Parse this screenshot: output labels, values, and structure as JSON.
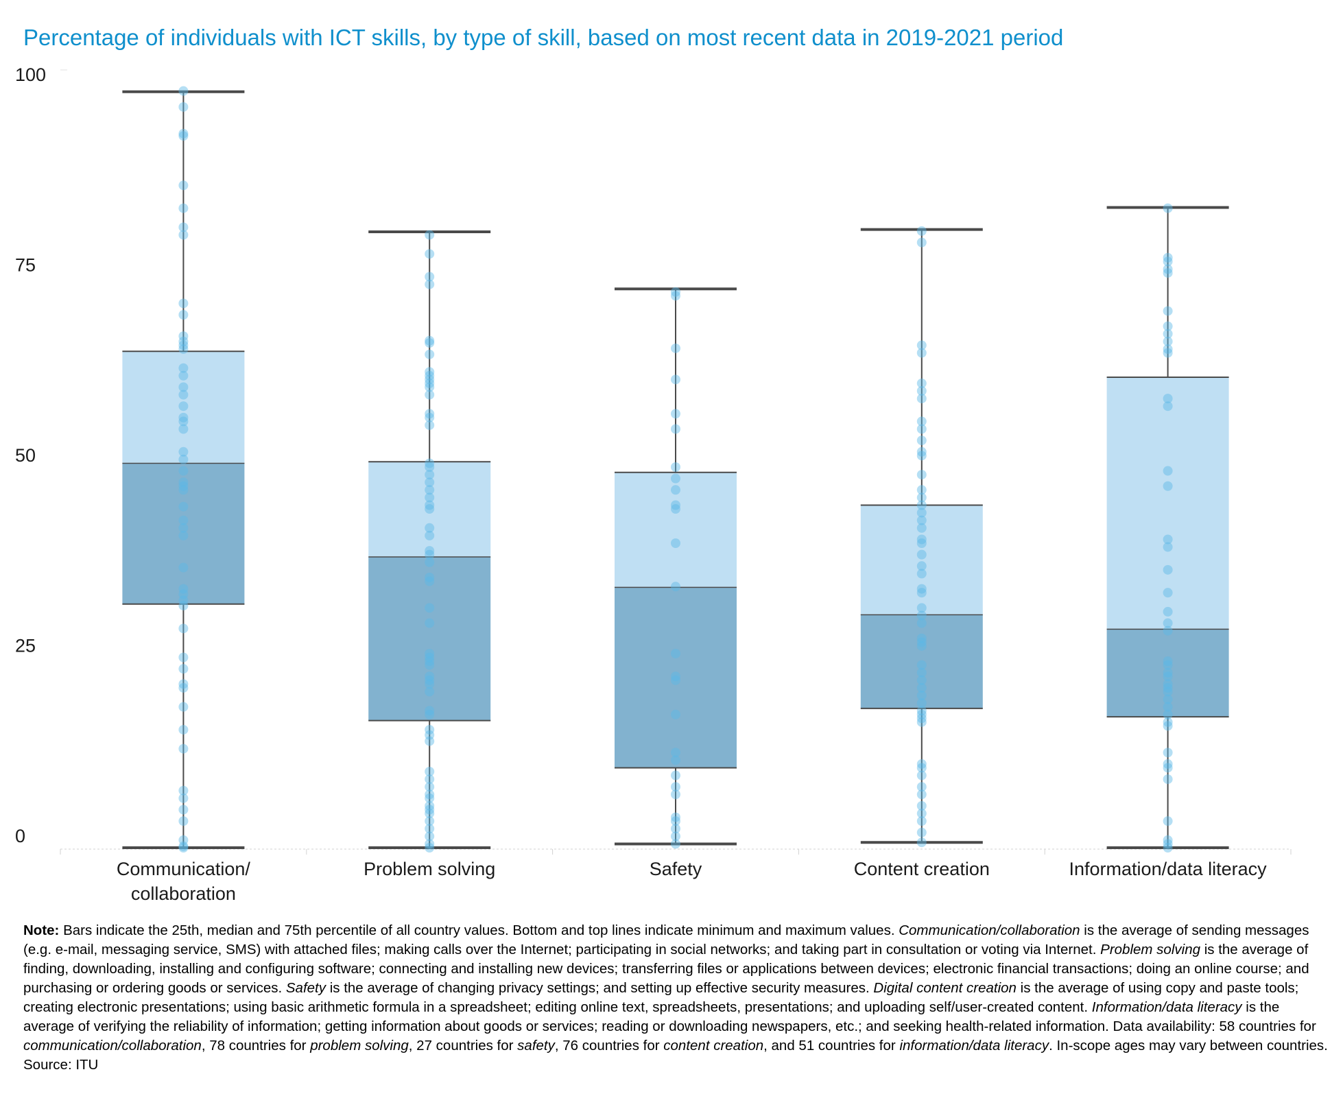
{
  "chart_data": {
    "type": "box",
    "title": "Percentage of individuals with ICT skills, by type of skill, based on most recent data in 2019-2021 period",
    "xlabel": "",
    "ylabel": "",
    "ylim": [
      0,
      100
    ],
    "yticks": [
      0,
      25,
      50,
      75,
      100
    ],
    "grid": false,
    "legend": "none",
    "colors": {
      "upper_box": "#bfdff3",
      "lower_box": "#82b2cf",
      "whisker": "#4a4a4a",
      "points": "#5bb8e6",
      "title": "#0f8fcc"
    },
    "categories": [
      {
        "label_lines": [
          "Communication/",
          "collaboration"
        ],
        "min": 0,
        "q1": 32,
        "median": 50.5,
        "q3": 65.2,
        "max": 99.3,
        "points": [
          0,
          0.2,
          1,
          3.5,
          5,
          6.5,
          7.5,
          13,
          15.5,
          18.5,
          21,
          21.5,
          23.5,
          25,
          28.8,
          31.8,
          32.5,
          33.3,
          34,
          36.8,
          41,
          42,
          43,
          44.8,
          47,
          47.5,
          48,
          49.5,
          51,
          52,
          55,
          56,
          56.5,
          58,
          59.5,
          60.5,
          62,
          63,
          65.5,
          66,
          66.5,
          67.2,
          70,
          71.5,
          80.5,
          81.5,
          84,
          87,
          93.5,
          93.8,
          97.3,
          99.4
        ]
      },
      {
        "label_lines": [
          "Problem solving"
        ],
        "min": 0,
        "q1": 16.7,
        "median": 38.2,
        "q3": 50.7,
        "max": 80.9,
        "points": [
          0,
          0.5,
          1.5,
          2.5,
          3.5,
          4.5,
          5,
          5.5,
          6.5,
          7,
          8,
          9,
          10,
          14,
          14.8,
          15.5,
          17.5,
          18,
          20.5,
          21.5,
          22,
          22.5,
          24,
          24.5,
          25,
          25.5,
          29.5,
          31.5,
          35,
          35.5,
          37.5,
          38.5,
          39,
          41,
          42,
          44.5,
          45,
          46,
          47,
          48,
          49,
          50,
          50.5,
          55.5,
          56.5,
          57,
          59.5,
          60.5,
          61,
          61.5,
          62,
          62.5,
          64.8,
          66.3,
          66.6,
          74,
          75,
          78,
          80.5
        ]
      },
      {
        "label_lines": [
          "Safety"
        ],
        "min": 0.5,
        "q1": 10.5,
        "median": 34.2,
        "q3": 49.3,
        "max": 73.4,
        "points": [
          0.5,
          1.5,
          2.5,
          3.5,
          4,
          7,
          8,
          9.5,
          11.5,
          12.5,
          17.5,
          22,
          22.5,
          25.5,
          34.3,
          40,
          44.5,
          45,
          47,
          48.5,
          50,
          55,
          57,
          61.5,
          65.6,
          72.5,
          73
        ]
      },
      {
        "label_lines": [
          "Content creation"
        ],
        "min": 0.7,
        "q1": 18.3,
        "median": 30.6,
        "q3": 45,
        "max": 81.2,
        "points": [
          0.7,
          2,
          3.5,
          4.5,
          5.5,
          7,
          8,
          9.5,
          10.5,
          11,
          16.5,
          17,
          17.5,
          18,
          19,
          20,
          21,
          22,
          23,
          24,
          26.5,
          27,
          27.5,
          29.5,
          30.5,
          31.5,
          33.5,
          34,
          36,
          37,
          38.5,
          40,
          40.5,
          42,
          43,
          44,
          45,
          46,
          47,
          49,
          51.5,
          52,
          53.5,
          55,
          56,
          59,
          60,
          61,
          65,
          66,
          79.5,
          81
        ]
      },
      {
        "label_lines": [
          "Information/data literacy"
        ],
        "min": 0,
        "q1": 17.2,
        "median": 28.7,
        "q3": 61.8,
        "max": 84.1,
        "points": [
          0,
          0.5,
          1,
          3.5,
          9,
          10.5,
          11,
          12.5,
          16,
          16.5,
          17.5,
          18.5,
          19.5,
          20.5,
          21,
          21.5,
          22.5,
          23,
          24,
          24.5,
          28.5,
          29.5,
          31,
          33.5,
          36.5,
          39.5,
          40.5,
          47.5,
          49.5,
          58,
          59,
          65,
          65.5,
          66.5,
          67.5,
          68.5,
          70.5,
          75.5,
          76,
          77,
          77.5,
          84
        ]
      }
    ]
  },
  "note": {
    "label": "Note:",
    "parts": [
      {
        "t": " Bars indicate the 25th, median and 75th percentile of all country values. Bottom and top lines indicate minimum and maximum values. ",
        "i": false
      },
      {
        "t": "Communication/collaboration",
        "i": true
      },
      {
        "t": " is the average of sending messages (e.g. e-mail, messaging service, SMS) with attached files; making calls over the Internet; participating in social networks; and taking part in consultation or voting via Internet. ",
        "i": false
      },
      {
        "t": "Problem solving",
        "i": true
      },
      {
        "t": " is the average of finding, downloading, installing and configuring software; connecting and installing new devices; transferring files or applications between devices; electronic financial transactions; doing an online course; and purchasing or ordering goods or services. ",
        "i": false
      },
      {
        "t": "Safety",
        "i": true
      },
      {
        "t": " is the average of changing privacy settings; and setting up effective security measures. ",
        "i": false
      },
      {
        "t": "Digital content creation",
        "i": true
      },
      {
        "t": " is the average of using copy and paste tools; creating electronic presentations; using basic arithmetic formula in a spreadsheet; editing online text, spreadsheets, presentations; and uploading self/user-created content. ",
        "i": false
      },
      {
        "t": "Information/data literacy",
        "i": true
      },
      {
        "t": " is the average of verifying the reliability of information; getting information about goods or services; reading or downloading newspapers, etc.; and seeking health-related information. Data availability: 58 countries for ",
        "i": false
      },
      {
        "t": "communication/collaboration",
        "i": true
      },
      {
        "t": ", 78 countries for ",
        "i": false
      },
      {
        "t": "problem solving",
        "i": true
      },
      {
        "t": ", 27 countries for ",
        "i": false
      },
      {
        "t": "safety",
        "i": true
      },
      {
        "t": ", 76 countries for ",
        "i": false
      },
      {
        "t": "content creation",
        "i": true
      },
      {
        "t": ", and 51 countries for ",
        "i": false
      },
      {
        "t": "information/data literacy",
        "i": true
      },
      {
        "t": ". In-scope ages may vary between countries. Source: ITU",
        "i": false
      }
    ]
  }
}
